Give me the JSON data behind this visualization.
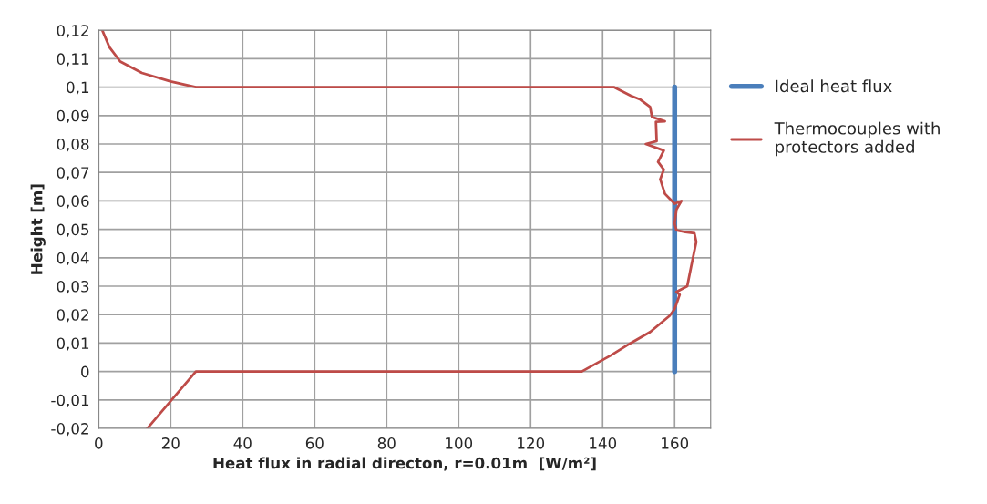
{
  "chart_data": {
    "type": "line",
    "xlabel": "Heat flux in radial directon, r=0.01m  [W/m²]",
    "ylabel": "Height [m]",
    "xlim": [
      0,
      170
    ],
    "xticks": [
      0,
      20,
      40,
      60,
      80,
      100,
      120,
      140,
      160
    ],
    "ylim": [
      -0.02,
      0.12
    ],
    "yticks": [
      {
        "value": -0.02,
        "label": "-0,02"
      },
      {
        "value": -0.01,
        "label": "-0,01"
      },
      {
        "value": 0,
        "label": "0"
      },
      {
        "value": 0.01,
        "label": "0,01"
      },
      {
        "value": 0.02,
        "label": "0,02"
      },
      {
        "value": 0.03,
        "label": "0,03"
      },
      {
        "value": 0.04,
        "label": "0,04"
      },
      {
        "value": 0.05,
        "label": "0,05"
      },
      {
        "value": 0.06,
        "label": "0,06"
      },
      {
        "value": 0.07,
        "label": "0,07"
      },
      {
        "value": 0.08,
        "label": "0,08"
      },
      {
        "value": 0.09,
        "label": "0,09"
      },
      {
        "value": 0.1,
        "label": "0,1"
      },
      {
        "value": 0.11,
        "label": "0,11"
      },
      {
        "value": 0.12,
        "label": "0,12"
      }
    ],
    "grid": true,
    "legend": "right",
    "marker": "none",
    "line_style": "solid",
    "series": [
      {
        "name": "Ideal heat flux",
        "color": "#4a7ebb",
        "x": [
          160,
          160
        ],
        "values": [
          0,
          0.1
        ]
      },
      {
        "name": "Thermocouples with\nprotectors added",
        "color": "#be4b48",
        "x": [
          13.5,
          27,
          133,
          134.2,
          142.3,
          147.8,
          153.2,
          158.6,
          160,
          161.4,
          160.5,
          163.5,
          164.6,
          166,
          165.5,
          163,
          160.5,
          160,
          160.5,
          161.9,
          160,
          157.3,
          156,
          157,
          155.4,
          157,
          152,
          155,
          154.8,
          157.3,
          153.7,
          153.2,
          150.5,
          147.8,
          144.2,
          143.1,
          27,
          20,
          12,
          6,
          3,
          1
        ],
        "values": [
          -0.02,
          0,
          0,
          0,
          0.0057,
          0.01,
          0.0139,
          0.0196,
          0.022,
          0.027,
          0.028,
          0.03,
          0.037,
          0.0456,
          0.0486,
          0.049,
          0.0497,
          0.052,
          0.057,
          0.06,
          0.059,
          0.0625,
          0.0676,
          0.071,
          0.0737,
          0.0777,
          0.08,
          0.081,
          0.0878,
          0.088,
          0.0895,
          0.093,
          0.0956,
          0.097,
          0.0993,
          0.1,
          0.1,
          0.102,
          0.105,
          0.109,
          0.114,
          0.12
        ]
      }
    ]
  }
}
